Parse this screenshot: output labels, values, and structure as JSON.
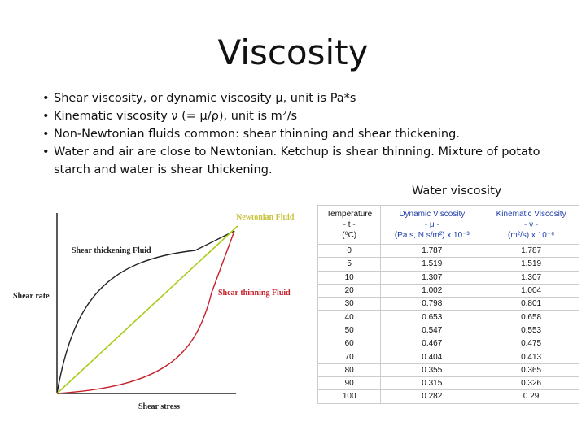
{
  "title": "Viscosity",
  "bullets": [
    "Shear viscosity, or dynamic viscosity μ, unit is Pa*s",
    "Kinematic viscosity ν (= μ/ρ), unit is m²/s",
    "Non-Newtonian fluids common: shear thinning and shear thickening.",
    "Water and air are close to Newtonian. Ketchup is shear thinning. Mixture of potato starch and water is shear thickening."
  ],
  "figure": {
    "y_label": "Shear rate",
    "x_label": "Shear stress",
    "curves": [
      "Newtonian Fluid",
      "Shear thickening Fluid",
      "Shear thinning Fluid"
    ]
  },
  "table": {
    "caption": "Water viscosity",
    "header": [
      [
        "Temperature",
        "- t -",
        "(⁰C)"
      ],
      [
        "Dynamic Viscosity",
        "- μ -",
        "(Pa s, N s/m²) x 10⁻³"
      ],
      [
        "Kinematic Viscosity",
        "- ν -",
        "(m²/s) x 10⁻⁶"
      ]
    ],
    "rows": [
      [
        "0",
        "1.787",
        "1.787"
      ],
      [
        "5",
        "1.519",
        "1.519"
      ],
      [
        "10",
        "1.307",
        "1.307"
      ],
      [
        "20",
        "1.002",
        "1.004"
      ],
      [
        "30",
        "0.798",
        "0.801"
      ],
      [
        "40",
        "0.653",
        "0.658"
      ],
      [
        "50",
        "0.547",
        "0.553"
      ],
      [
        "60",
        "0.467",
        "0.475"
      ],
      [
        "70",
        "0.404",
        "0.413"
      ],
      [
        "80",
        "0.355",
        "0.365"
      ],
      [
        "90",
        "0.315",
        "0.326"
      ],
      [
        "100",
        "0.282",
        "0.29"
      ]
    ]
  }
}
